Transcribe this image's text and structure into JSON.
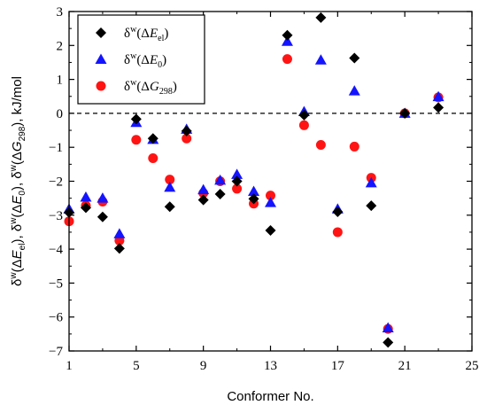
{
  "chart_data": {
    "type": "scatter",
    "xlabel": "Conformer No.",
    "ylabel": "δw(ΔEel), δw(ΔE0), δw(ΔG298), kJ/mol",
    "xlim": [
      1,
      25
    ],
    "ylim": [
      -7,
      3
    ],
    "xticks": [
      1,
      5,
      9,
      13,
      17,
      21,
      25
    ],
    "yticks": [
      3,
      2,
      1,
      0,
      -1,
      -2,
      -3,
      -4,
      -5,
      -6,
      -7
    ],
    "reference_line": {
      "y": 0,
      "style": "dashed"
    },
    "legend_position": "top-left",
    "legend": [
      {
        "prefix": "δ",
        "sup": "w",
        "open": "(Δ",
        "var": "E",
        "sub": "el",
        "close": ")"
      },
      {
        "prefix": "δ",
        "sup": "w",
        "open": "(Δ",
        "var": "E",
        "sub": "0",
        "close": ")"
      },
      {
        "prefix": "δ",
        "sup": "w",
        "open": "(Δ",
        "var": "G",
        "sub": "298",
        "close": ")"
      }
    ],
    "series": [
      {
        "marker": "diamond",
        "color": "#000000",
        "x": [
          1,
          2,
          3,
          4,
          5,
          6,
          7,
          8,
          9,
          10,
          11,
          12,
          13,
          14,
          15,
          16,
          17,
          18,
          19,
          20,
          21,
          23
        ],
        "y": [
          -2.92,
          -2.78,
          -3.05,
          -3.98,
          -0.17,
          -0.74,
          -2.75,
          -0.52,
          -2.55,
          -2.38,
          -2.0,
          -2.52,
          -3.45,
          2.3,
          -0.05,
          2.82,
          -2.9,
          1.63,
          -2.72,
          -6.75,
          0.0,
          0.17
        ]
      },
      {
        "marker": "triangle",
        "color": "#1414ff",
        "x": [
          1,
          2,
          3,
          4,
          5,
          6,
          7,
          8,
          9,
          10,
          11,
          12,
          13,
          14,
          15,
          16,
          17,
          18,
          19,
          20,
          21,
          23
        ],
        "y": [
          -2.82,
          -2.47,
          -2.5,
          -3.55,
          -0.27,
          -0.77,
          -2.18,
          -0.47,
          -2.25,
          -1.97,
          -1.8,
          -2.3,
          -2.63,
          2.12,
          0.05,
          1.57,
          -2.82,
          0.66,
          -2.05,
          -6.32,
          0.0,
          0.49
        ]
      },
      {
        "marker": "circle",
        "color": "#ff1414",
        "x": [
          1,
          2,
          3,
          4,
          5,
          6,
          7,
          8,
          9,
          10,
          11,
          12,
          13,
          14,
          15,
          16,
          17,
          18,
          19,
          20,
          21,
          23
        ],
        "y": [
          -3.18,
          -2.72,
          -2.6,
          -3.75,
          -0.78,
          -1.32,
          -1.95,
          -0.74,
          -2.35,
          -2.0,
          -2.22,
          -2.66,
          -2.42,
          1.6,
          -0.35,
          -0.93,
          -3.5,
          -0.98,
          -1.9,
          -6.35,
          0.0,
          0.47
        ]
      }
    ]
  }
}
